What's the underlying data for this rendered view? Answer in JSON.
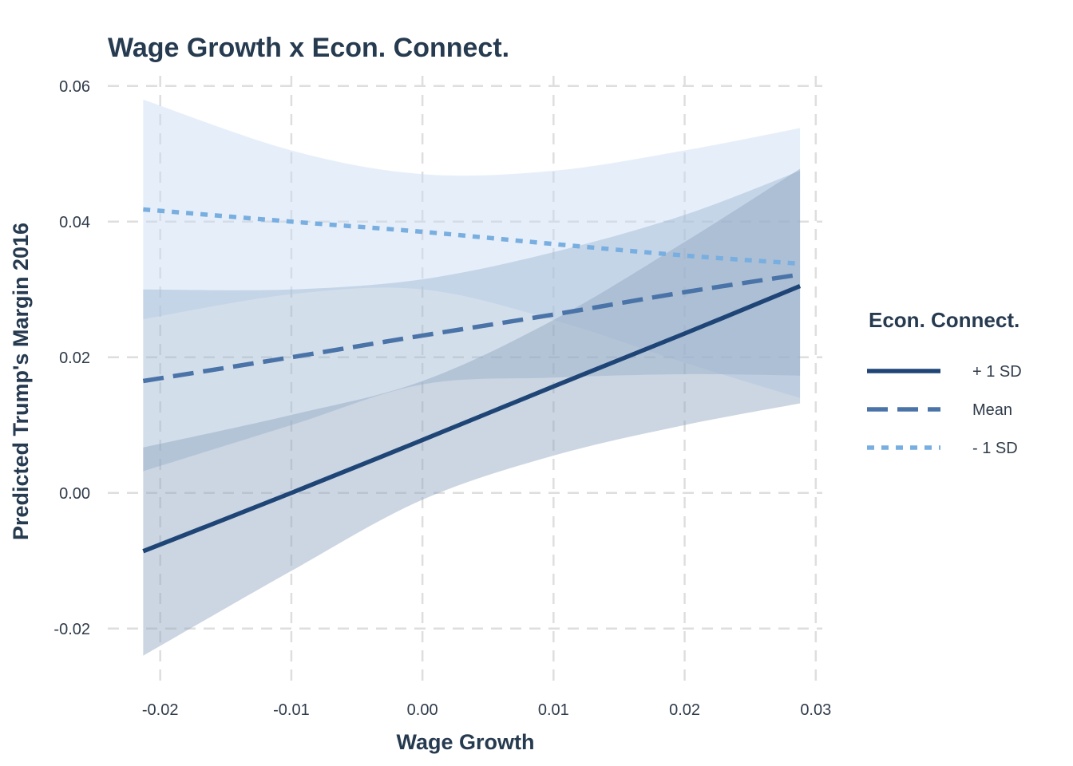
{
  "chart_data": {
    "type": "line",
    "title": "Wage Growth x Econ. Connect.",
    "xlabel": "Wage Growth",
    "ylabel": "Predicted Trump's Margin 2016",
    "xlim": [
      -0.024,
      0.0305
    ],
    "ylim": [
      -0.0285,
      0.0615
    ],
    "x_ticks": [
      -0.02,
      -0.01,
      0.0,
      0.01,
      0.02,
      0.03
    ],
    "x_tick_labels": [
      "-0.02",
      "-0.01",
      "0.00",
      "0.01",
      "0.02",
      "0.03"
    ],
    "y_ticks": [
      -0.02,
      0.0,
      0.02,
      0.04,
      0.06
    ],
    "y_tick_labels": [
      "-0.02",
      "0.00",
      "0.02",
      "0.04",
      "0.06"
    ],
    "grid": true,
    "legend": {
      "title": "Econ. Connect.",
      "position": "right"
    },
    "series": [
      {
        "name": "- 1 SD",
        "line_style": "dotted",
        "color": "#79aee0",
        "fill_color": "#c7dcf2",
        "x": [
          -0.0213,
          -0.01,
          0.0,
          0.01,
          0.02,
          0.0288
        ],
        "y": [
          0.0418,
          0.04,
          0.0385,
          0.0367,
          0.035,
          0.0338
        ],
        "ci_lower": [
          0.0256,
          0.0293,
          0.03,
          0.0255,
          0.0192,
          0.014
        ],
        "ci_upper": [
          0.058,
          0.0505,
          0.047,
          0.0475,
          0.0505,
          0.0538
        ]
      },
      {
        "name": "Mean",
        "line_style": "dashed",
        "color": "#4a73a8",
        "fill_color": "#9db5d2",
        "x": [
          -0.0213,
          -0.01,
          0.0,
          0.01,
          0.02,
          0.0288
        ],
        "y": [
          0.0165,
          0.02,
          0.0232,
          0.0263,
          0.0296,
          0.0322
        ],
        "ci_lower": [
          0.0032,
          0.01,
          0.016,
          0.017,
          0.0175,
          0.0173
        ],
        "ci_upper": [
          0.03,
          0.03,
          0.0315,
          0.0355,
          0.041,
          0.0475
        ]
      },
      {
        "name": "+ 1 SD",
        "line_style": "solid",
        "color": "#1f4577",
        "fill_color": "#8ea4bf",
        "x": [
          -0.0213,
          -0.01,
          0.0,
          0.01,
          0.02,
          0.0288
        ],
        "y": [
          -0.0086,
          0.0,
          0.0078,
          0.0157,
          0.0235,
          0.0305
        ],
        "ci_lower": [
          -0.024,
          -0.0115,
          -0.001,
          0.0055,
          0.01,
          0.0132
        ],
        "ci_upper": [
          0.0067,
          0.0115,
          0.0165,
          0.0255,
          0.037,
          0.0478
        ]
      }
    ]
  }
}
